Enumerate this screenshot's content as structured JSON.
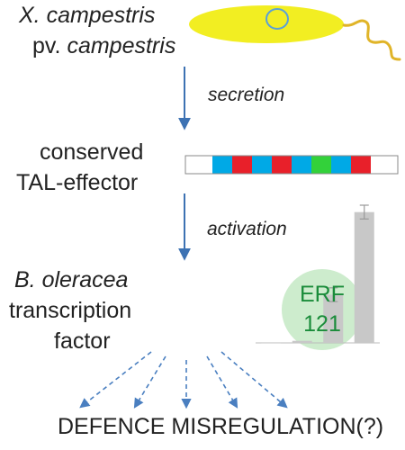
{
  "organism": {
    "line1": "X. campestris",
    "line2_prefix": "pv. ",
    "line2_italic": "campestris"
  },
  "protein": {
    "line1": "conserved",
    "line2": "TAL-effector"
  },
  "host": {
    "line1": "B. oleracea",
    "line2": "transcription",
    "line3": "factor"
  },
  "steps": {
    "secretion": "secretion",
    "activation": "activation"
  },
  "erf": {
    "line1": "ERF",
    "line2": "121"
  },
  "outcome": "DEFENCE MISREGULATION(?)",
  "colors": {
    "bacterium_fill": "#f2ee22",
    "nucleus_stroke": "#5aa0d8",
    "flagellum": "#e0b428",
    "arrow": "#3d72b3",
    "dashed_arrow": "#4a7fc0",
    "repeat_blue": "#00a9e6",
    "repeat_red": "#e8202a",
    "repeat_green": "#33d13a",
    "erf_circle": "#cdeccd",
    "erf_text": "#1a8c3a",
    "bar_fill": "#c8c8c8",
    "error_bar": "#9a9a9a"
  },
  "tal_repeats": [
    "white",
    "blue",
    "red",
    "blue",
    "red",
    "blue",
    "green",
    "blue",
    "red",
    "white"
  ],
  "chart_data": {
    "type": "bar",
    "values": [
      0.004,
      0.015,
      0.35,
      0.95
    ],
    "errors": [
      0,
      0,
      0.05,
      0.05
    ],
    "ylim": [
      0,
      1
    ]
  }
}
